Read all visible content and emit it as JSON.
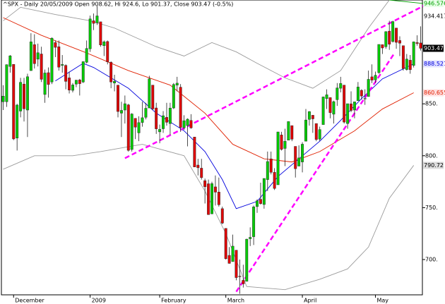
{
  "chart_data": {
    "type": "candlestick",
    "title": "^SPX - Daily 20/05/2009 Open 908.62, Hi 924.6, Lo 901.37, Close 903.47 (-0.5%)",
    "categories": [
      null,
      null,
      null,
      "December",
      null,
      null,
      null,
      null,
      null,
      null,
      null,
      null,
      null,
      null,
      null,
      null,
      null,
      null,
      null,
      null,
      null,
      null,
      null,
      null,
      null,
      "2009",
      null,
      null,
      null,
      null,
      null,
      null,
      null,
      null,
      null,
      null,
      null,
      null,
      null,
      null,
      null,
      null,
      null,
      null,
      null,
      "February",
      null,
      null,
      null,
      null,
      null,
      null,
      null,
      null,
      null,
      null,
      null,
      null,
      null,
      null,
      null,
      null,
      null,
      null,
      "March",
      null,
      null,
      null,
      null,
      null,
      null,
      null,
      null,
      null,
      null,
      null,
      null,
      null,
      null,
      null,
      null,
      null,
      null,
      null,
      null,
      null,
      "April",
      null,
      null,
      null,
      null,
      null,
      null,
      null,
      null,
      null,
      null,
      null,
      null,
      null,
      null,
      null,
      null,
      null,
      null,
      null,
      null,
      "May",
      null,
      null,
      null,
      null,
      null,
      null,
      null,
      null,
      null,
      null,
      null,
      null,
      null
    ],
    "open": [
      852,
      852,
      886,
      888,
      817,
      843,
      869,
      844,
      882,
      907,
      893,
      898,
      859,
      880,
      871,
      909,
      905,
      887,
      887,
      875,
      863,
      869,
      873,
      871,
      890,
      903,
      930,
      928,
      929,
      906,
      910,
      890,
      870,
      868,
      841,
      844,
      849,
      806,
      836,
      822,
      832,
      837,
      846,
      868,
      846,
      823,
      826,
      837,
      831,
      846,
      868,
      866,
      827,
      829,
      834,
      818,
      791,
      788,
      776,
      773,
      744,
      770,
      765,
      749,
      730,
      704,
      698,
      709,
      684,
      680,
      679,
      720,
      722,
      751,
      758,
      753,
      777,
      797,
      784,
      772,
      820,
      807,
      815,
      829,
      809,
      790,
      794,
      814,
      835,
      839,
      831,
      816,
      830,
      855,
      856,
      840,
      854,
      865,
      868,
      831,
      850,
      844,
      853,
      863,
      855,
      857,
      876,
      873,
      880,
      907,
      905,
      920,
      910,
      923,
      911,
      906,
      883,
      892,
      887,
      909,
      908.62
    ],
    "high": [
      868,
      888,
      897,
      888,
      850,
      875,
      875,
      879,
      918,
      917,
      908,
      905,
      883,
      885,
      914,
      911,
      911,
      897,
      888,
      881,
      870,
      873,
      874,
      891,
      911,
      935,
      937,
      944,
      929,
      911,
      911,
      891,
      878,
      868,
      852,
      858,
      850,
      841,
      836,
      838,
      852,
      851,
      877,
      868,
      851,
      830,
      843,
      851,
      851,
      870,
      876,
      869,
      839,
      836,
      840,
      818,
      797,
      797,
      778,
      777,
      775,
      781,
      779,
      751,
      730,
      712,
      724,
      709,
      700,
      695,
      720,
      731,
      752,
      758,
      774,
      778,
      804,
      804,
      788,
      823,
      823,
      826,
      833,
      829,
      809,
      810,
      813,
      845,
      843,
      839,
      831,
      828,
      857,
      864,
      856,
      853,
      870,
      876,
      868,
      850,
      862,
      852,
      871,
      864,
      864,
      882,
      888,
      881,
      907,
      907,
      920,
      930,
      930,
      923,
      915,
      906,
      898,
      897,
      910,
      916,
      924.6
    ],
    "low": [
      844,
      847,
      880,
      815,
      805,
      837,
      833,
      818,
      882,
      884,
      886,
      871,
      851,
      856,
      869,
      895,
      882,
      880,
      864,
      860,
      861,
      866,
      858,
      870,
      889,
      900,
      921,
      926,
      905,
      896,
      888,
      865,
      862,
      837,
      818,
      831,
      804,
      804,
      816,
      814,
      828,
      835,
      846,
      844,
      821,
      812,
      822,
      829,
      820,
      845,
      862,
      823,
      825,
      809,
      826,
      789,
      781,
      777,
      754,
      743,
      744,
      752,
      751,
      734,
      700,
      696,
      698,
      680,
      667,
      673,
      679,
      713,
      714,
      745,
      753,
      749,
      766,
      782,
      767,
      772,
      805,
      790,
      815,
      814,
      779,
      790,
      784,
      814,
      829,
      822,
      814,
      814,
      830,
      845,
      836,
      831,
      848,
      861,
      831,
      826,
      842,
      836,
      853,
      854,
      849,
      857,
      870,
      870,
      879,
      898,
      903,
      902,
      909,
      903,
      896,
      882,
      882,
      879,
      885,
      906,
      901.37
    ],
    "close": [
      857.4,
      887.7,
      896.2,
      816.2,
      848.8,
      870.7,
      845.2,
      876.1,
      909.7,
      888.7,
      899.2,
      873.6,
      879.7,
      868.6,
      913.2,
      904.4,
      885.3,
      887.9,
      871.6,
      863.2,
      868.2,
      872.8,
      869.4,
      890.6,
      903.3,
      931.8,
      927.5,
      934.7,
      906.7,
      909.7,
      890.4,
      871.0,
      871.8,
      842.6,
      843.7,
      850.1,
      805.2,
      840.2,
      827.5,
      831.9,
      836.6,
      845.7,
      874.1,
      845.1,
      825.9,
      825.4,
      838.5,
      832.2,
      845.9,
      868.6,
      869.9,
      827.2,
      833.7,
      835.2,
      826.8,
      789.2,
      788.4,
      778.9,
      770.1,
      743.3,
      773.1,
      764.9,
      752.8,
      735.1,
      700.8,
      696.3,
      712.9,
      682.6,
      683.4,
      676.5,
      719.6,
      721.4,
      750.7,
      756.6,
      753.9,
      778.1,
      794.4,
      784.0,
      768.5,
      822.9,
      806.1,
      813.9,
      832.9,
      815.9,
      787.5,
      797.9,
      811.1,
      834.4,
      842.5,
      835.5,
      815.6,
      825.2,
      856.6,
      858.7,
      841.5,
      852.1,
      865.3,
      869.6,
      832.4,
      850.1,
      843.6,
      851.9,
      866.2,
      857.5,
      855.2,
      873.6,
      872.8,
      877.5,
      907.2,
      903.8,
      919.5,
      907.4,
      929.2,
      909.2,
      908.4,
      883.9,
      893.1,
      882.9,
      909.7,
      908.1,
      903.47
    ],
    "up_color": "#00cc00",
    "down_color": "#e00000",
    "lines": [
      {
        "color": "#9a9a9a",
        "dash": false,
        "x": [
          0,
          5,
          15,
          25,
          32,
          44,
          52,
          60,
          67,
          73,
          81,
          89,
          97,
          105,
          111
        ],
        "values": [
          930,
          943,
          936,
          930,
          923,
          905,
          896,
          909,
          900,
          889,
          875,
          865,
          882,
          923,
          950
        ]
      },
      {
        "color": "#9a9a9a",
        "dash": false,
        "x": [
          0,
          9,
          20,
          28,
          40,
          52,
          58,
          64,
          70,
          81,
          91,
          99,
          105,
          111,
          118
        ],
        "values": [
          787,
          800,
          800,
          804,
          811,
          800,
          766,
          725,
          674,
          671,
          681,
          691,
          712,
          759,
          790.72
        ]
      },
      {
        "color": "#00a000",
        "dash": false,
        "x": [
          111,
          121
        ],
        "values": [
          950,
          946.576
        ]
      },
      {
        "color": "#e02000",
        "dash": false,
        "x": [
          0,
          11,
          24,
          36,
          48,
          58,
          66,
          75,
          83,
          91,
          101,
          109,
          118
        ],
        "values": [
          933,
          916,
          899,
          882,
          868,
          841,
          811,
          797,
          794,
          804,
          824,
          845,
          860.655
        ]
      },
      {
        "color": "#0000dd",
        "dash": false,
        "x": [
          15,
          23,
          26,
          36,
          44,
          52,
          58,
          63,
          67,
          73,
          79,
          85,
          91,
          97,
          103,
          109,
          118
        ],
        "values": [
          872,
          889,
          885,
          865,
          841,
          824,
          804,
          777,
          749,
          756,
          780,
          797,
          814,
          834,
          855,
          874,
          888.521
        ]
      },
      {
        "color": "#ff00ff",
        "dash": true,
        "x": [
          35,
          121
        ],
        "values": [
          797.6,
          944.6
        ]
      },
      {
        "color": "#ff00ff",
        "dash": true,
        "x": [
          67,
          112.5
        ],
        "values": [
          669,
          899
        ]
      }
    ],
    "markers": [
      {
        "value": 946.576,
        "color": "#00a000",
        "background": "#e8ffe8"
      },
      {
        "value": 934.417,
        "color": "#000000",
        "background": "#ffffff"
      },
      {
        "value": 903.47,
        "color": "#ffffff",
        "background": "#000000"
      },
      {
        "value": 888.521,
        "color": "#0000dd",
        "background": "#e0e0ff"
      },
      {
        "value": 860.655,
        "color": "#e02000",
        "background": "#ffe0e0"
      },
      {
        "value": 790.72,
        "color": "#000000",
        "background": "#dddddd"
      }
    ],
    "ylim": [
      666,
      950
    ],
    "yticks": [
      {
        "value": 850,
        "label": "850."
      },
      {
        "value": 800,
        "label": "800."
      },
      {
        "value": 750,
        "label": "750."
      },
      {
        "value": 700,
        "label": "700."
      }
    ]
  }
}
